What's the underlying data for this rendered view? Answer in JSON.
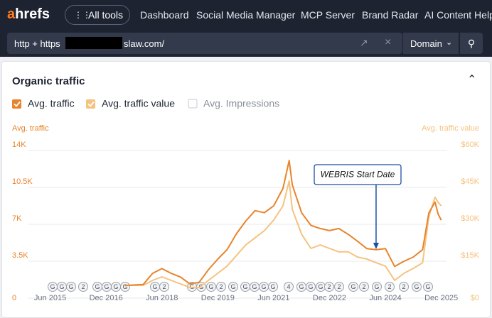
{
  "nav": {
    "logo_a": "a",
    "logo_rest": "hrefs",
    "all_tools": "All tools",
    "items": [
      "Dashboard",
      "Social Media Manager",
      "MCP Server",
      "Brand Radar",
      "AI Content Help"
    ]
  },
  "search": {
    "protocol": "http + https",
    "url_suffix": "slaw.com/",
    "mode": "Domain"
  },
  "panel": {
    "title": "Organic traffic",
    "inactive_legend": "Avg. Impressions"
  },
  "event_markers": [
    "G",
    "G",
    "G",
    "2",
    "G",
    "G",
    "G",
    "G",
    "G",
    "2",
    "G",
    "G",
    "G",
    "2",
    "G",
    "G",
    "G",
    "G",
    "G",
    "4",
    "G",
    "G",
    "G",
    "2",
    "2",
    "G",
    "2",
    "G",
    "2",
    "2",
    "G",
    "G"
  ],
  "chart_data": {
    "type": "line",
    "y_axis_label": "Avg. traffic",
    "y2_axis_label": "Avg. traffic value",
    "annotation": "WEBRIS Start Date",
    "annotation_x": "2024-03",
    "x": [
      "2017-06",
      "2017-12",
      "2018-03",
      "2018-06",
      "2018-09",
      "2018-12",
      "2019-03",
      "2019-06",
      "2019-09",
      "2019-12",
      "2020-03",
      "2020-06",
      "2020-09",
      "2020-12",
      "2021-03",
      "2021-06",
      "2021-09",
      "2021-11",
      "2021-12",
      "2022-03",
      "2022-06",
      "2022-09",
      "2022-12",
      "2023-03",
      "2023-06",
      "2023-09",
      "2023-12",
      "2024-03",
      "2024-06",
      "2024-09",
      "2024-12",
      "2025-03",
      "2025-06",
      "2025-08",
      "2025-10",
      "2025-11",
      "2025-12"
    ],
    "series": [
      {
        "name": "Avg. traffic",
        "color": "#e8842c",
        "values": [
          1200,
          1300,
          2350,
          2800,
          2350,
          2000,
          1350,
          1500,
          2700,
          3700,
          4600,
          6100,
          7300,
          8300,
          8100,
          8750,
          10400,
          13050,
          10750,
          8100,
          6900,
          6600,
          6400,
          6600,
          6050,
          5400,
          4700,
          4600,
          4700,
          3000,
          3500,
          3900,
          4600,
          8100,
          9100,
          7950,
          7400
        ]
      },
      {
        "name": "Avg. traffic value",
        "color": "#f6c27e",
        "axis": "y2",
        "values": [
          5200,
          5200,
          7200,
          8650,
          7200,
          5800,
          4300,
          4300,
          7200,
          10100,
          13000,
          17300,
          21600,
          24500,
          27400,
          31700,
          37500,
          47600,
          36100,
          26000,
          20200,
          21600,
          20200,
          18800,
          18800,
          16700,
          15900,
          14400,
          13000,
          7200,
          10100,
          12100,
          14400,
          33200,
          41000,
          38900,
          37500
        ]
      }
    ],
    "xlim": [
      "2014-11",
      "2026-01"
    ],
    "xticks": [
      {
        "value": "2015-06",
        "label": "Jun 2015"
      },
      {
        "value": "2016-12",
        "label": "Dec 2016"
      },
      {
        "value": "2018-06",
        "label": "Jun 2018"
      },
      {
        "value": "2019-12",
        "label": "Dec 2019"
      },
      {
        "value": "2021-06",
        "label": "Jun 2021"
      },
      {
        "value": "2022-12",
        "label": "Dec 2022"
      },
      {
        "value": "2024-06",
        "label": "Jun 2024"
      },
      {
        "value": "2025-12",
        "label": "Dec 2025"
      }
    ],
    "ylim": [
      0,
      14000
    ],
    "yticks": [
      0,
      {
        "value": 3500,
        "label": "3.5K"
      },
      {
        "value": 7000,
        "label": "7K"
      },
      {
        "value": 10500,
        "label": "10.5K"
      },
      {
        "value": 14000,
        "label": "14K"
      }
    ],
    "y2lim": [
      0,
      60000
    ],
    "y2ticks": [
      {
        "value": 0,
        "label": "$0"
      },
      {
        "value": 15000,
        "label": "$15K"
      },
      {
        "value": 30000,
        "label": "$30K"
      },
      {
        "value": 45000,
        "label": "$45K"
      },
      {
        "value": 60000,
        "label": "$60K"
      }
    ],
    "grid": true
  }
}
